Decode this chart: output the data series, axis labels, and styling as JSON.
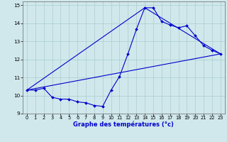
{
  "xlabel": "Graphe des températures (°c)",
  "xlim": [
    -0.5,
    23.5
  ],
  "ylim": [
    9,
    15.2
  ],
  "yticks": [
    9,
    10,
    11,
    12,
    13,
    14,
    15
  ],
  "xticks": [
    0,
    1,
    2,
    3,
    4,
    5,
    6,
    7,
    8,
    9,
    10,
    11,
    12,
    13,
    14,
    15,
    16,
    17,
    18,
    19,
    20,
    21,
    22,
    23
  ],
  "line_color": "#0000cc",
  "bg_color": "#d0e8ec",
  "grid_color": "#aacccc",
  "line1_x": [
    0,
    1,
    2,
    3,
    4,
    5,
    6,
    7,
    8,
    9,
    10,
    11,
    12,
    13,
    14,
    15,
    16,
    17,
    18,
    19,
    20,
    21,
    22,
    23
  ],
  "line1_y": [
    10.3,
    10.3,
    10.4,
    9.9,
    9.8,
    9.8,
    9.65,
    9.6,
    9.45,
    9.4,
    10.3,
    11.05,
    12.3,
    13.65,
    14.85,
    14.85,
    14.1,
    13.9,
    13.75,
    13.85,
    13.3,
    12.75,
    12.5,
    12.3
  ],
  "line2_x": [
    0,
    23
  ],
  "line2_y": [
    10.3,
    12.3
  ],
  "line3_x": [
    0,
    14,
    23
  ],
  "line3_y": [
    10.3,
    14.85,
    12.3
  ]
}
